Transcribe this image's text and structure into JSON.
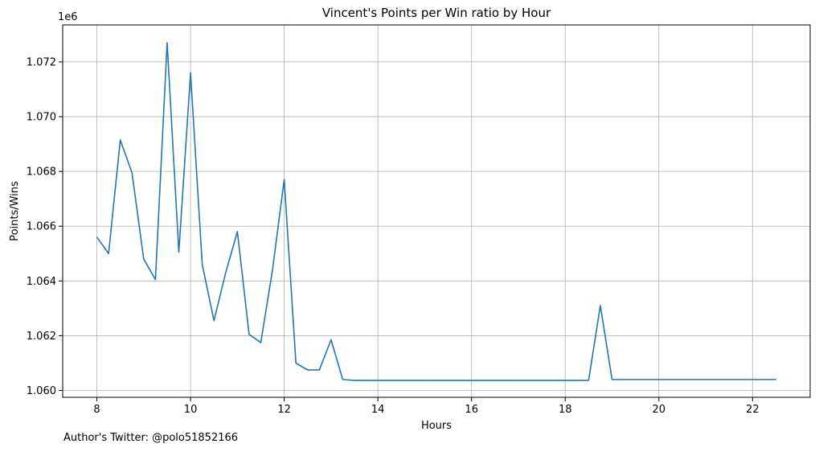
{
  "chart_data": {
    "type": "line",
    "title": "Vincent's Points per Win ratio by Hour",
    "xlabel": "Hours",
    "ylabel": "Points/Wins",
    "y_offset_label": "1e6",
    "xlim": [
      7.27,
      23.23
    ],
    "ylim": [
      1059.75,
      1073.35
    ],
    "x_ticks": [
      8,
      10,
      12,
      14,
      16,
      18,
      20,
      22
    ],
    "x_tick_labels": [
      "8",
      "10",
      "12",
      "14",
      "16",
      "18",
      "20",
      "22"
    ],
    "y_ticks": [
      1060,
      1062,
      1064,
      1066,
      1068,
      1070,
      1072
    ],
    "y_tick_labels": [
      "1.060",
      "1.062",
      "1.064",
      "1.066",
      "1.068",
      "1.070",
      "1.072"
    ],
    "grid": true,
    "series": [
      {
        "color": "#1f77b4",
        "x": [
          8,
          8.25,
          8.5,
          8.75,
          9,
          9.25,
          9.5,
          9.75,
          10,
          10.25,
          10.5,
          10.75,
          11,
          11.25,
          11.5,
          11.75,
          12,
          12.25,
          12.5,
          12.75,
          13,
          13.25,
          13.5,
          14,
          15,
          16,
          17,
          18,
          18.5,
          18.75,
          19,
          19.5,
          20,
          21,
          22,
          22.5
        ],
        "y": [
          1065.6,
          1065.0,
          1069.15,
          1067.95,
          1064.8,
          1064.05,
          1072.7,
          1065.05,
          1071.6,
          1064.6,
          1062.55,
          1064.3,
          1065.8,
          1062.05,
          1061.75,
          1064.4,
          1067.7,
          1061.0,
          1060.75,
          1060.75,
          1061.85,
          1060.4,
          1060.37,
          1060.37,
          1060.37,
          1060.37,
          1060.37,
          1060.37,
          1060.37,
          1063.1,
          1060.4,
          1060.4,
          1060.4,
          1060.4,
          1060.4,
          1060.4
        ]
      }
    ]
  },
  "footer": {
    "text": "Author's Twitter: @polo51852166"
  }
}
